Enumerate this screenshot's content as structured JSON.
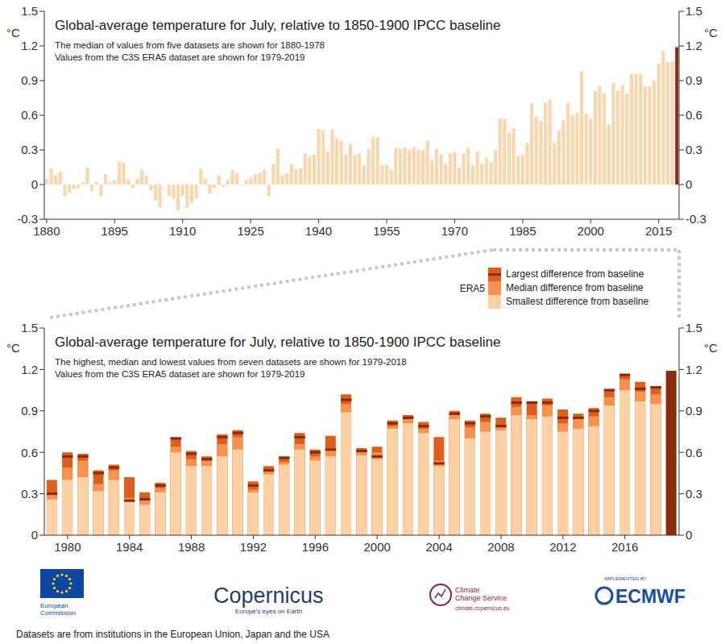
{
  "chart_data": [
    {
      "type": "bar",
      "title": "Global-average temperature for July, relative to 1850-1900 IPCC baseline",
      "subtitle": [
        "The median of values from five datasets are shown for 1880-1978",
        "Values from the C3S ERA5 dataset are shown for 1979-2019"
      ],
      "y_label": "°C",
      "categories": [
        "1880",
        null,
        null,
        null,
        null,
        null,
        null,
        null,
        null,
        null,
        null,
        null,
        null,
        null,
        null,
        "1895",
        null,
        null,
        null,
        null,
        null,
        null,
        null,
        null,
        null,
        null,
        null,
        null,
        null,
        null,
        "1910",
        null,
        null,
        null,
        null,
        null,
        null,
        null,
        null,
        null,
        null,
        null,
        null,
        null,
        null,
        "1925",
        null,
        null,
        null,
        null,
        null,
        null,
        null,
        null,
        null,
        null,
        null,
        null,
        null,
        null,
        "1940",
        null,
        null,
        null,
        null,
        null,
        null,
        null,
        null,
        null,
        null,
        null,
        null,
        null,
        null,
        "1955",
        null,
        null,
        null,
        null,
        null,
        null,
        null,
        null,
        null,
        null,
        null,
        null,
        null,
        null,
        "1970",
        null,
        null,
        null,
        null,
        null,
        null,
        null,
        null,
        null,
        null,
        null,
        null,
        null,
        null,
        "1985",
        null,
        null,
        null,
        null,
        null,
        null,
        null,
        null,
        null,
        null,
        null,
        null,
        null,
        null,
        "2000",
        null,
        null,
        null,
        null,
        null,
        null,
        null,
        null,
        null,
        null,
        null,
        null,
        null,
        null,
        "2015",
        null,
        null,
        null,
        null
      ],
      "values": [
        0.05,
        0.14,
        0.08,
        0.11,
        -0.1,
        -0.07,
        -0.04,
        -0.03,
        0.02,
        0.15,
        -0.06,
        0.02,
        -0.1,
        0.09,
        0.02,
        0.04,
        0.2,
        0.19,
        0.04,
        -0.03,
        0.05,
        0.13,
        0.08,
        -0.05,
        -0.14,
        -0.2,
        0.0,
        -0.1,
        -0.12,
        -0.22,
        -0.1,
        -0.2,
        -0.16,
        -0.12,
        0.14,
        0.05,
        -0.08,
        -0.03,
        0.08,
        -0.02,
        0.04,
        0.13,
        0.1,
        -0.01,
        0.04,
        0.06,
        0.09,
        0.1,
        0.13,
        -0.1,
        0.18,
        0.31,
        0.08,
        0.1,
        0.18,
        0.13,
        0.14,
        0.27,
        0.24,
        0.26,
        0.48,
        0.47,
        0.29,
        0.48,
        0.4,
        0.38,
        0.26,
        0.35,
        0.26,
        0.27,
        0.17,
        0.31,
        0.41,
        0.41,
        0.17,
        0.17,
        0.13,
        0.32,
        0.31,
        0.32,
        0.3,
        0.32,
        0.3,
        0.3,
        0.38,
        0.21,
        0.31,
        0.26,
        0.18,
        0.27,
        0.28,
        0.15,
        0.27,
        0.32,
        0.17,
        0.29,
        0.18,
        0.23,
        0.19,
        0.3,
        0.57,
        0.57,
        0.45,
        0.49,
        0.25,
        0.26,
        0.36,
        0.7,
        0.59,
        0.55,
        0.71,
        0.74,
        0.36,
        0.47,
        0.56,
        0.71,
        0.6,
        0.62,
        0.98,
        0.61,
        0.57,
        0.81,
        0.85,
        0.79,
        0.52,
        0.88,
        0.81,
        0.86,
        0.79,
        0.96,
        0.96,
        0.96,
        0.85,
        0.85,
        0.9,
        1.05,
        1.16,
        1.06,
        1.07,
        1.19
      ],
      "colors": [
        "#fdd5ab",
        "#fdd5ab",
        "#fdd5ab",
        "#fdd5ab",
        "#fdd5ab",
        "#fdd5ab",
        "#fdd5ab",
        "#fdd5ab",
        "#fdd5ab",
        "#fdd5ab",
        "#fdd5ab",
        "#fdd5ab",
        "#fdd5ab",
        "#fdd5ab",
        "#fdd5ab",
        "#fdd5ab",
        "#fdd5ab",
        "#fdd5ab",
        "#fdd5ab",
        "#fdd5ab",
        "#fdd5ab",
        "#fdd5ab",
        "#fdd5ab",
        "#fdd5ab",
        "#fdd5ab",
        "#fdd5ab",
        "#fdd5ab",
        "#fdd5ab",
        "#fdd5ab",
        "#fdd5ab",
        "#fdd5ab",
        "#fdd5ab",
        "#fdd5ab",
        "#fdd5ab",
        "#fdd5ab",
        "#fdd5ab",
        "#fdd5ab",
        "#fdd5ab",
        "#fdd5ab",
        "#fdd5ab",
        "#fdd5ab",
        "#fdd5ab",
        "#fdd5ab",
        "#fdd5ab",
        "#fdd5ab",
        "#fdd5ab",
        "#fdd5ab",
        "#fdd5ab",
        "#fdd5ab",
        "#fdd5ab",
        "#fdd5ab",
        "#fdd5ab",
        "#fdd5ab",
        "#fdd5ab",
        "#fdd5ab",
        "#fdd5ab",
        "#fdd5ab",
        "#fdd5ab",
        "#fdd5ab",
        "#fdd5ab",
        "#fdd5ab",
        "#fdd5ab",
        "#fdd5ab",
        "#fdd5ab",
        "#fdd5ab",
        "#fdd5ab",
        "#fdd5ab",
        "#fdd5ab",
        "#fdd5ab",
        "#fdd5ab",
        "#fdd5ab",
        "#fdd5ab",
        "#fdd5ab",
        "#fdd5ab",
        "#fdd5ab",
        "#fdd5ab",
        "#fdd5ab",
        "#fdd5ab",
        "#fdd5ab",
        "#fdd5ab",
        "#fdd5ab",
        "#fdd5ab",
        "#fdd5ab",
        "#fdd5ab",
        "#fdd5ab",
        "#fdd5ab",
        "#fdd5ab",
        "#fdd5ab",
        "#fdd5ab",
        "#fdd5ab",
        "#fdd5ab",
        "#fdd5ab",
        "#fdd5ab",
        "#fdd5ab",
        "#fdd5ab",
        "#fdd5ab",
        "#fdd5ab",
        "#fdd5ab",
        "#fdd5ab",
        "#fdd5ab",
        "#fdd5ab",
        "#fdd5ab",
        "#fdd5ab",
        "#fdd5ab",
        "#fdd5ab",
        "#fdd5ab",
        "#fdd5ab",
        "#fdd5ab",
        "#fdd5ab",
        "#fdd5ab",
        "#fdd5ab",
        "#fdd5ab",
        "#fdd5ab",
        "#fdd5ab",
        "#fdd5ab",
        "#fdd5ab",
        "#fdd5ab",
        "#fdd5ab",
        "#fdd5ab",
        "#fdd5ab",
        "#fdd5ab",
        "#fdd5ab",
        "#fdd5ab",
        "#fdd5ab",
        "#fdd5ab",
        "#fdd5ab",
        "#fdd5ab",
        "#fdd5ab",
        "#fdd5ab",
        "#fdd5ab",
        "#fdd5ab",
        "#fdd5ab",
        "#fdd5ab",
        "#fdd5ab",
        "#fdd5ab",
        "#fdd5ab",
        "#fdd5ab",
        "#fdd5ab",
        "#fdd5ab",
        "#8c2a0b"
      ],
      "ylim": [
        -0.3,
        1.5
      ],
      "yticks": [
        -0.3,
        0,
        0.3,
        0.6,
        0.9,
        1.2,
        1.5
      ]
    },
    {
      "type": "bar",
      "title": "Global-average temperature for July, relative to 1850-1900 IPCC baseline",
      "subtitle": [
        "The highest, median and lowest values from seven datasets are shown for 1979-2018",
        "Values from the C3S ERA5 dataset are shown for 1979-2019"
      ],
      "y_label": "°C",
      "categories": [
        null,
        "1980",
        null,
        null,
        null,
        "1984",
        null,
        null,
        null,
        "1988",
        null,
        null,
        null,
        "1992",
        null,
        null,
        null,
        "1996",
        null,
        null,
        null,
        "2000",
        null,
        null,
        null,
        "2004",
        null,
        null,
        null,
        "2008",
        null,
        null,
        null,
        "2012",
        null,
        null,
        null,
        "2016",
        null,
        null,
        null
      ],
      "series": [
        {
          "name": "Largest difference from baseline",
          "color": "#dc5f1d",
          "values": [
            0.4,
            0.6,
            0.59,
            0.47,
            0.51,
            0.42,
            0.31,
            0.38,
            0.71,
            0.61,
            0.57,
            0.73,
            0.76,
            0.39,
            0.5,
            0.57,
            0.74,
            0.62,
            0.72,
            1.02,
            0.63,
            0.64,
            0.83,
            0.87,
            0.82,
            0.71,
            0.9,
            0.83,
            0.88,
            0.85,
            1.0,
            0.97,
            0.99,
            0.91,
            0.88,
            0.92,
            1.06,
            1.17,
            1.11,
            1.08,
            null
          ]
        },
        {
          "name": "Median difference from baseline",
          "color": "#f6924f",
          "values": [
            0.3,
            0.49,
            0.54,
            0.37,
            0.47,
            0.27,
            0.26,
            0.34,
            0.64,
            0.55,
            0.54,
            0.66,
            0.71,
            0.33,
            0.46,
            0.53,
            0.66,
            0.57,
            0.63,
            0.95,
            0.6,
            0.6,
            0.79,
            0.84,
            0.77,
            0.54,
            0.87,
            0.78,
            0.82,
            0.79,
            0.93,
            0.87,
            0.94,
            0.81,
            0.84,
            0.86,
            1.0,
            1.13,
            1.04,
            1.02,
            null
          ]
        },
        {
          "name": "Smallest difference from baseline",
          "color": "#fdd0a5",
          "values": [
            0.26,
            0.4,
            0.42,
            0.32,
            0.4,
            0.25,
            0.22,
            0.31,
            0.6,
            0.5,
            0.5,
            0.57,
            0.62,
            0.31,
            0.44,
            0.51,
            0.62,
            0.54,
            0.57,
            0.89,
            0.58,
            0.55,
            0.77,
            0.81,
            0.74,
            0.5,
            0.84,
            0.7,
            0.75,
            0.76,
            0.87,
            0.84,
            0.86,
            0.75,
            0.77,
            0.79,
            0.94,
            1.05,
            0.97,
            0.95,
            null
          ]
        },
        {
          "name": "ERA5",
          "color": "#8c2a0b",
          "marker": "dash",
          "values": [
            0.3,
            0.57,
            0.57,
            0.45,
            0.49,
            0.25,
            0.26,
            0.36,
            0.7,
            0.59,
            0.55,
            0.71,
            0.74,
            0.36,
            0.47,
            0.56,
            0.71,
            0.6,
            0.62,
            0.98,
            0.61,
            0.57,
            0.81,
            0.85,
            0.79,
            0.52,
            0.88,
            0.81,
            0.86,
            0.79,
            0.96,
            0.96,
            0.96,
            0.85,
            0.85,
            0.9,
            1.05,
            1.16,
            1.06,
            1.07,
            1.19
          ]
        }
      ],
      "legend": "top-right",
      "ylim": [
        0,
        1.5
      ],
      "yticks": [
        0,
        0.3,
        0.6,
        0.9,
        1.2,
        1.5
      ]
    }
  ],
  "logos": {
    "commission": "European Commission",
    "copernicus": "Copernicus",
    "copernicus_tagline": "Europe's eyes on Earth",
    "c3s": [
      "Climate",
      "Change Service"
    ],
    "c3s_url": "climate.copernicus.eu",
    "ecmwf_note": "IMPLEMENTED BY",
    "ecmwf": "ECMWF"
  },
  "note": "Datasets are from institutions in the European Union, Japan and the USA"
}
